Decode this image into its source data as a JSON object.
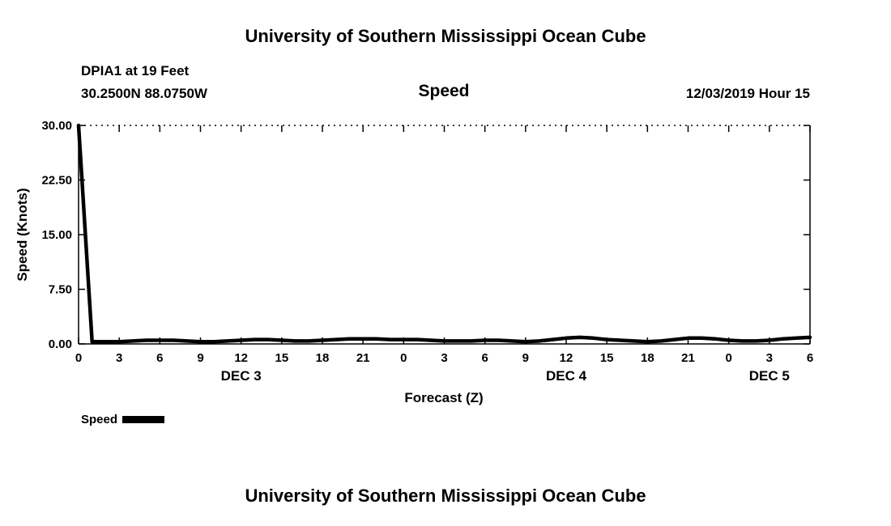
{
  "page": {
    "top_title": "University of Southern Mississippi Ocean Cube",
    "bottom_title": "University of Southern Mississippi Ocean Cube"
  },
  "header": {
    "station": "DPIA1 at 19 Feet",
    "coordinates": "30.2500N 88.0750W",
    "plot_title": "Speed",
    "run_time": "12/03/2019 Hour 15"
  },
  "legend": {
    "label": "Speed"
  },
  "colors": {
    "line": "#000000",
    "background": "#ffffff",
    "text": "#000000"
  },
  "chart_data": {
    "type": "line",
    "title": "Speed",
    "xlabel": "Forecast (Z)",
    "ylabel": "Speed (Knots)",
    "ylim": [
      0,
      30
    ],
    "yticks": [
      0,
      7.5,
      15,
      22.5,
      30
    ],
    "ytick_labels": [
      "0.00",
      "7.50",
      "15.00",
      "22.50",
      "30.00"
    ],
    "x_hours_range": [
      0,
      54
    ],
    "xtick_step": 3,
    "xtick_labels": [
      "0",
      "3",
      "6",
      "9",
      "12",
      "15",
      "18",
      "21",
      "0",
      "3",
      "6",
      "9",
      "12",
      "15",
      "18",
      "21",
      "0",
      "3",
      "6"
    ],
    "day_labels": [
      {
        "label": "DEC 3",
        "hour": 12
      },
      {
        "label": "DEC 4",
        "hour": 36
      },
      {
        "label": "DEC 5",
        "hour": 51
      }
    ],
    "grid": "top-border-dotted",
    "legend_position": "bottom-left",
    "series": [
      {
        "name": "Speed",
        "x_hours": [
          0,
          1,
          2,
          3,
          4,
          5,
          6,
          7,
          8,
          9,
          10,
          11,
          12,
          13,
          14,
          15,
          16,
          17,
          18,
          19,
          20,
          21,
          22,
          23,
          24,
          25,
          26,
          27,
          28,
          29,
          30,
          31,
          32,
          33,
          34,
          35,
          36,
          37,
          38,
          39,
          40,
          41,
          42,
          43,
          44,
          45,
          46,
          47,
          48,
          49,
          50,
          51,
          52,
          53,
          54
        ],
        "values": [
          30,
          0.3,
          0.3,
          0.3,
          0.4,
          0.5,
          0.5,
          0.5,
          0.4,
          0.3,
          0.3,
          0.4,
          0.5,
          0.6,
          0.6,
          0.5,
          0.4,
          0.4,
          0.5,
          0.6,
          0.7,
          0.7,
          0.7,
          0.6,
          0.6,
          0.6,
          0.5,
          0.4,
          0.4,
          0.4,
          0.5,
          0.5,
          0.4,
          0.3,
          0.4,
          0.6,
          0.8,
          0.9,
          0.8,
          0.6,
          0.5,
          0.4,
          0.3,
          0.4,
          0.6,
          0.8,
          0.8,
          0.7,
          0.5,
          0.4,
          0.4,
          0.5,
          0.7,
          0.8,
          0.9
        ]
      }
    ]
  }
}
